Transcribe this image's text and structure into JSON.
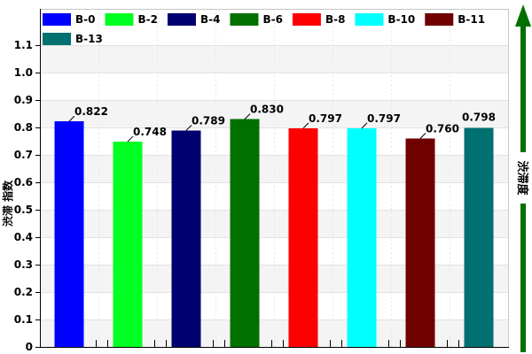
{
  "chart_data": {
    "type": "bar",
    "categories": [
      "B-0",
      "B-2",
      "B-4",
      "B-6",
      "B-8",
      "B-10",
      "B-11",
      "B-13"
    ],
    "values": [
      0.822,
      0.748,
      0.789,
      0.83,
      0.797,
      0.797,
      0.76,
      0.798
    ],
    "data_labels": [
      "0.822",
      "0.748",
      "0.789",
      "0.830",
      "0.797",
      "0.797",
      "0.760",
      "0.798"
    ],
    "colors": [
      "#0000ff",
      "#00ff22",
      "#000070",
      "#007000",
      "#ff0000",
      "#00ffff",
      "#700000",
      "#007070"
    ],
    "ylabel": "渋滞 指数",
    "yticks": [
      "0",
      "0.1",
      "0.2",
      "0.3",
      "0.4",
      "0.5",
      "0.6",
      "0.7",
      "0.8",
      "0.9",
      "1.0",
      "1.1"
    ],
    "ylim": [
      0,
      1.232
    ],
    "grid": true,
    "legend": {
      "position": "top-left"
    }
  },
  "side_indicator": {
    "label": "渋滞度",
    "icon": "up-arrow-icon",
    "color": "#007000"
  }
}
